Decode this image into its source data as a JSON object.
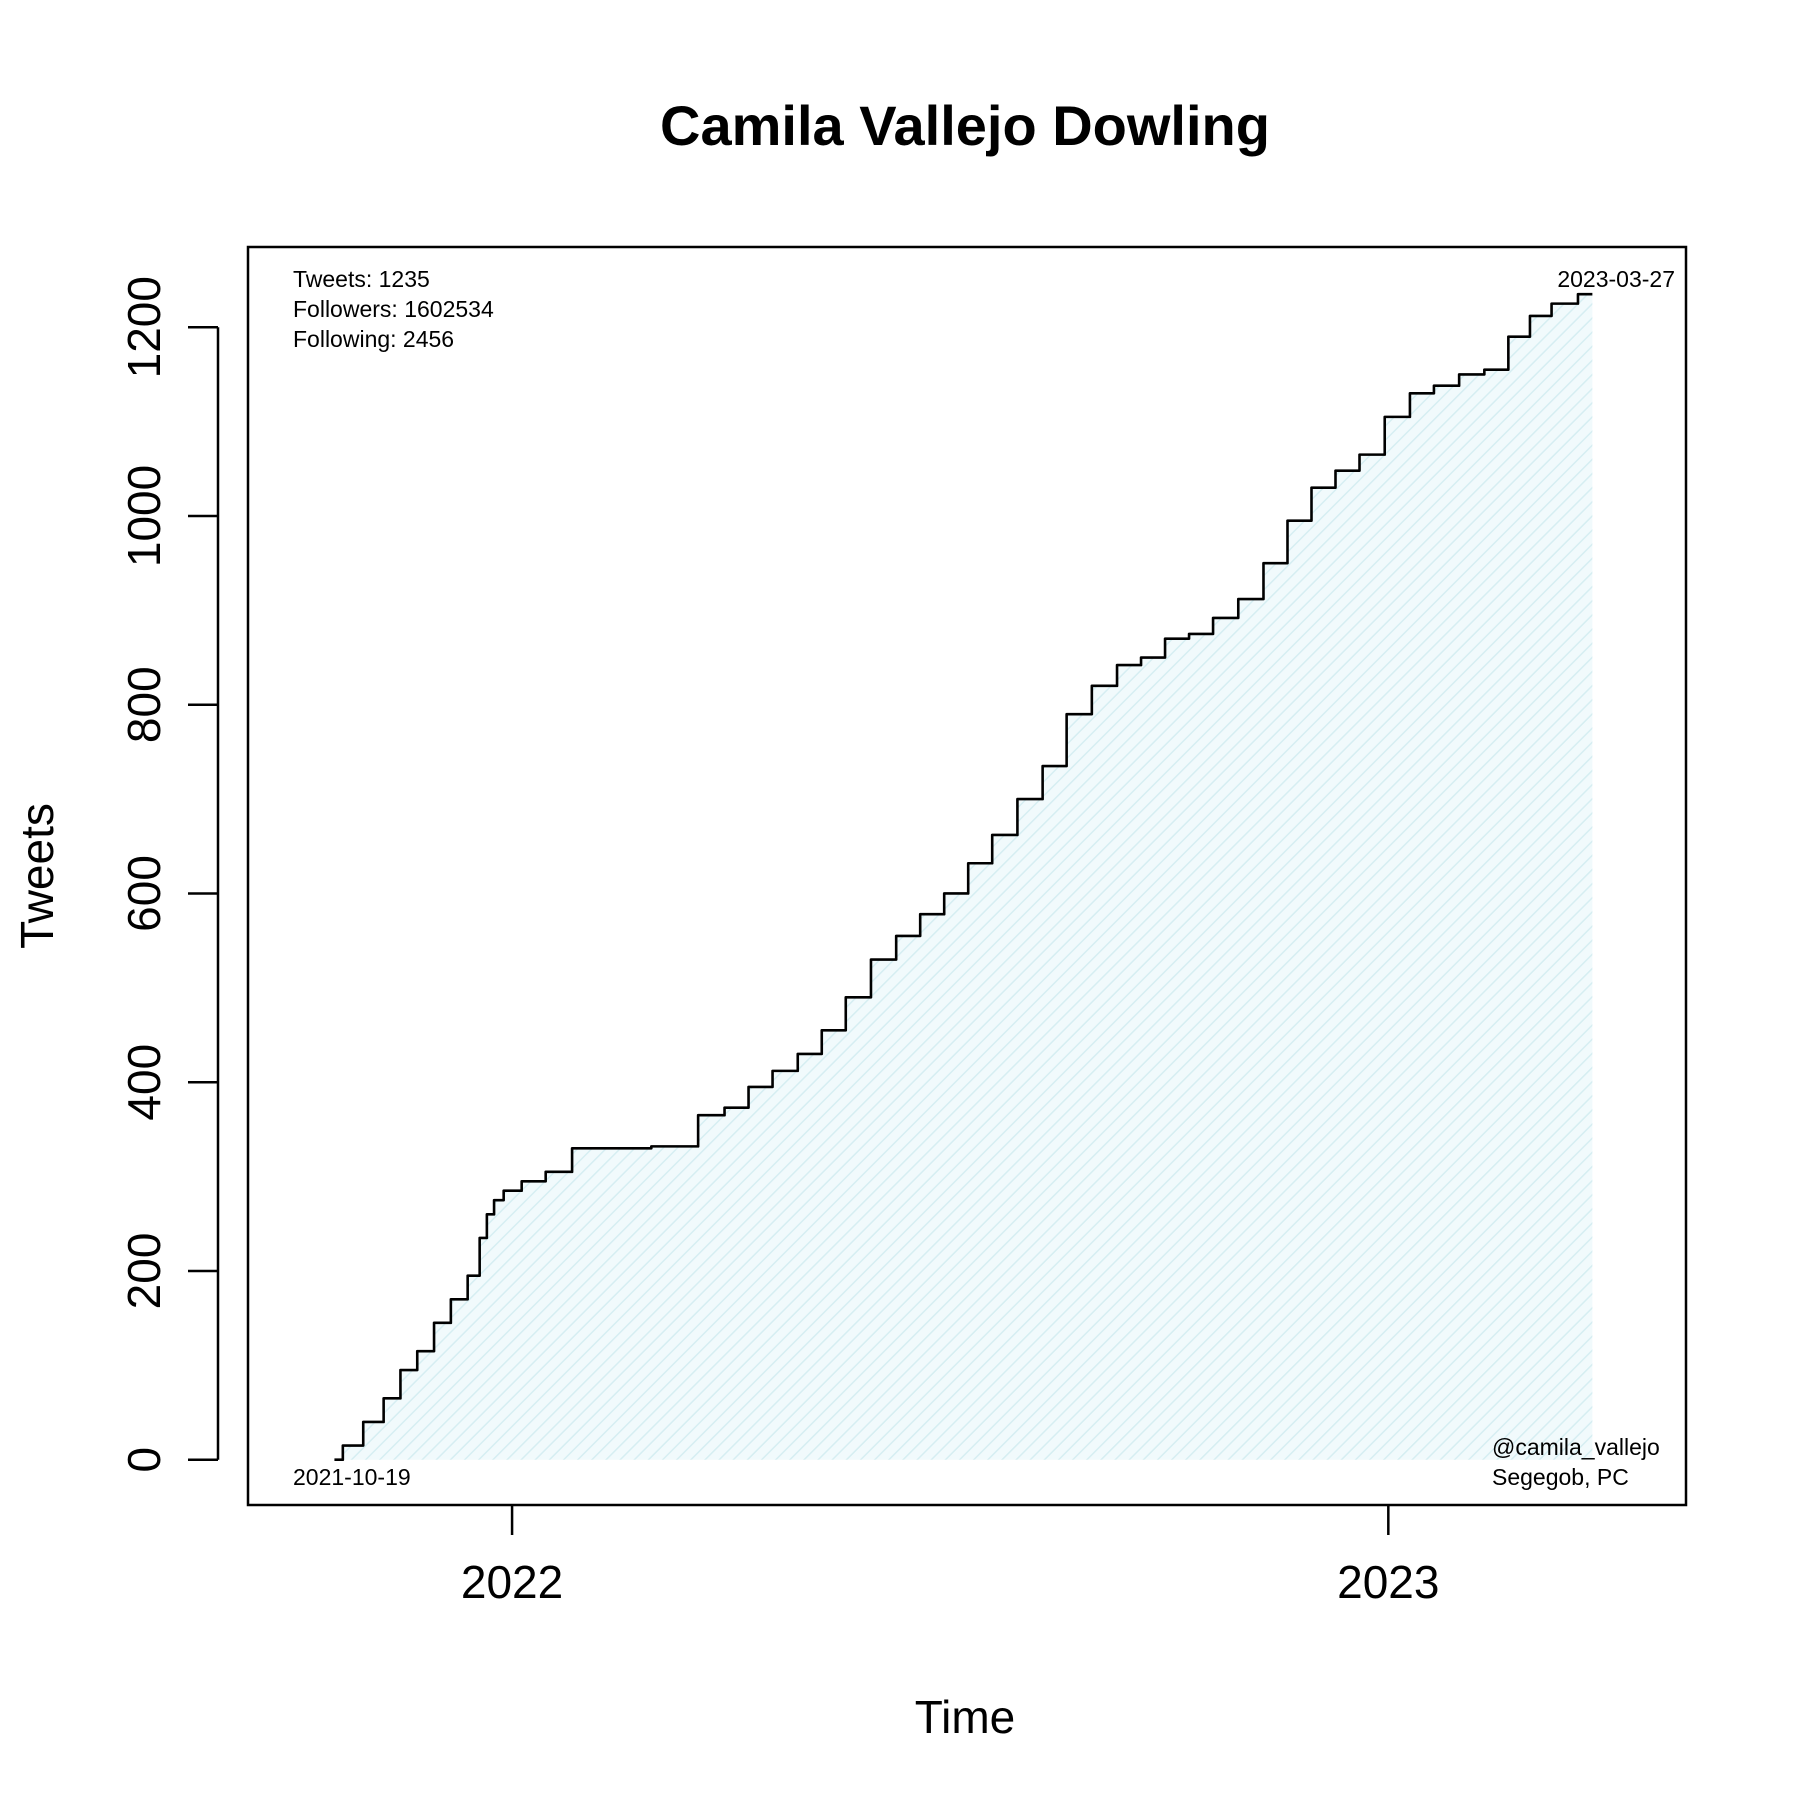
{
  "chart_data": {
    "type": "area",
    "title": "Camila Vallejo Dowling",
    "xlabel": "Time",
    "ylabel": "Tweets",
    "xlim": [
      "2021-09-13",
      "2023-05-05"
    ],
    "ylim": [
      -48,
      1285
    ],
    "x_ticks": [
      {
        "date": "2022-01-01",
        "label": "2022"
      },
      {
        "date": "2023-01-01",
        "label": "2023"
      }
    ],
    "y_ticks": [
      0,
      200,
      400,
      600,
      800,
      1000,
      1200
    ],
    "grid": false,
    "fill_color": "#c8e6ec",
    "line_color": "#000000",
    "series": [
      {
        "x": [
          "2021-10-19",
          "2021-10-26",
          "2021-11-05",
          "2021-11-12",
          "2021-11-19",
          "2021-11-26",
          "2021-12-03",
          "2021-12-10",
          "2021-12-17",
          "2021-12-20",
          "2021-12-23",
          "2021-12-26",
          "2021-12-31",
          "2022-01-10",
          "2022-01-20",
          "2022-02-01",
          "2022-02-08",
          "2022-02-14",
          "2022-03-14",
          "2022-03-25",
          "2022-04-05",
          "2022-04-14",
          "2022-04-25",
          "2022-05-05",
          "2022-05-15",
          "2022-05-25",
          "2022-06-05",
          "2022-06-15",
          "2022-06-25",
          "2022-07-05",
          "2022-07-15",
          "2022-07-25",
          "2022-08-05",
          "2022-08-15",
          "2022-08-25",
          "2022-09-05",
          "2022-09-15",
          "2022-09-25",
          "2022-10-05",
          "2022-10-15",
          "2022-10-25",
          "2022-11-05",
          "2022-11-15",
          "2022-11-25",
          "2022-12-05",
          "2022-12-15",
          "2022-12-25",
          "2023-01-05",
          "2023-01-15",
          "2023-01-25",
          "2023-02-05",
          "2023-02-15",
          "2023-02-25",
          "2023-03-05",
          "2023-03-15",
          "2023-03-27"
        ],
        "y": [
          0,
          15,
          40,
          65,
          95,
          115,
          145,
          170,
          195,
          235,
          260,
          275,
          285,
          295,
          305,
          330,
          330,
          330,
          332,
          365,
          373,
          395,
          412,
          430,
          455,
          490,
          530,
          555,
          578,
          600,
          632,
          662,
          700,
          735,
          790,
          820,
          842,
          850,
          870,
          875,
          892,
          912,
          950,
          995,
          1030,
          1048,
          1065,
          1105,
          1130,
          1138,
          1150,
          1155,
          1190,
          1212,
          1225,
          1235
        ]
      }
    ],
    "annotations": {
      "tweets": "Tweets: 1235",
      "followers": "Followers: 1602534",
      "following": "Following: 2456",
      "start_date": "2021-10-19",
      "end_date": "2023-03-27",
      "handle": "@camila_vallejo",
      "affiliation": "Segegob, PC"
    }
  }
}
